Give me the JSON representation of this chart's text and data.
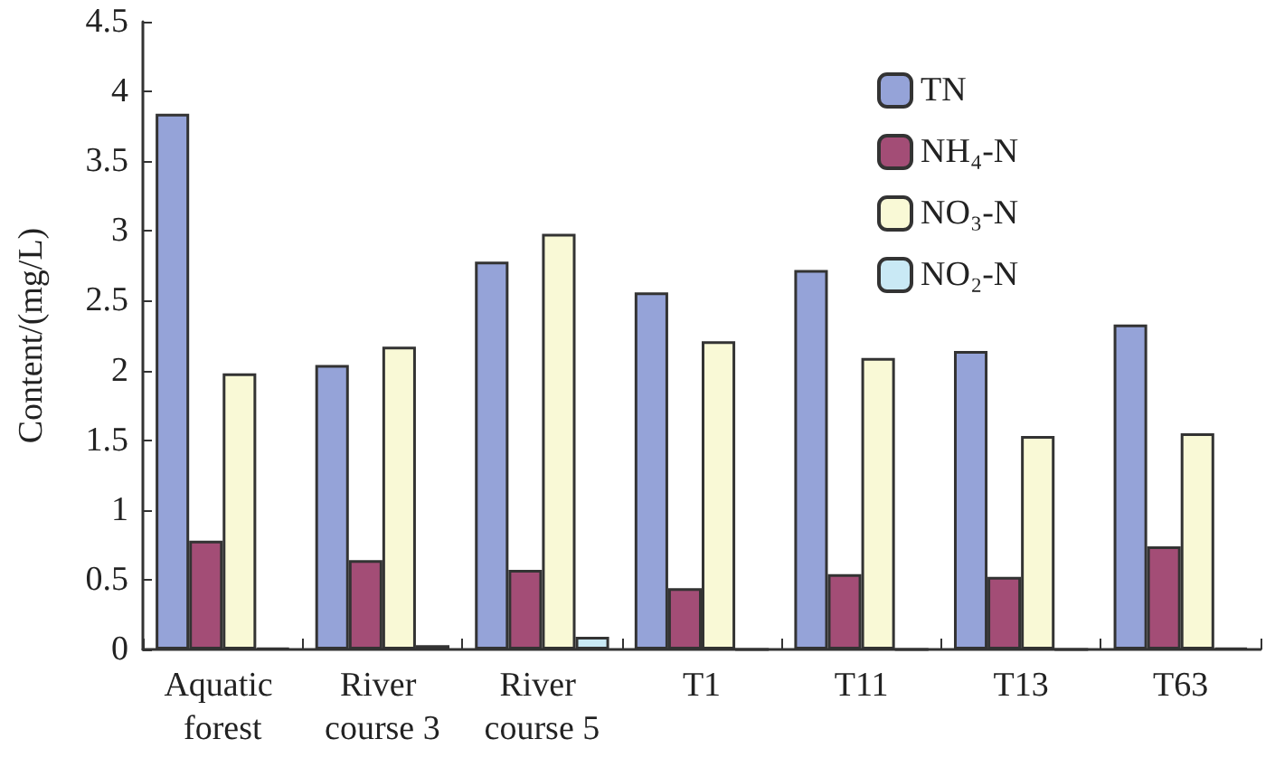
{
  "chart_data": {
    "type": "bar",
    "ylabel": "Content/(mg/L)",
    "categories": [
      "Aquatic forest",
      "River course 3",
      "River course 5",
      "T1",
      "T11",
      "T13",
      "T63"
    ],
    "series": [
      {
        "name": "TN",
        "color": "#95a3d8",
        "values": [
          3.84,
          2.04,
          2.78,
          2.56,
          2.72,
          2.14,
          2.33
        ]
      },
      {
        "name": "NH₄-N",
        "color": "#a34d76",
        "values": [
          0.78,
          0.64,
          0.57,
          0.44,
          0.54,
          0.52,
          0.74
        ]
      },
      {
        "name": "NO₃-N",
        "color": "#f9f9d6",
        "values": [
          1.98,
          2.17,
          2.98,
          2.21,
          2.09,
          1.53,
          1.55
        ]
      },
      {
        "name": "NO₂-N",
        "color": "#c9e9f5",
        "values": [
          0.01,
          0.03,
          0.09,
          0,
          0,
          0,
          0.01
        ]
      }
    ],
    "ylim": [
      0,
      4.5
    ],
    "yticks": [
      0,
      0.5,
      1,
      1.5,
      2,
      2.5,
      3,
      3.5,
      4,
      4.5
    ],
    "grid": false,
    "legend": "top right"
  }
}
